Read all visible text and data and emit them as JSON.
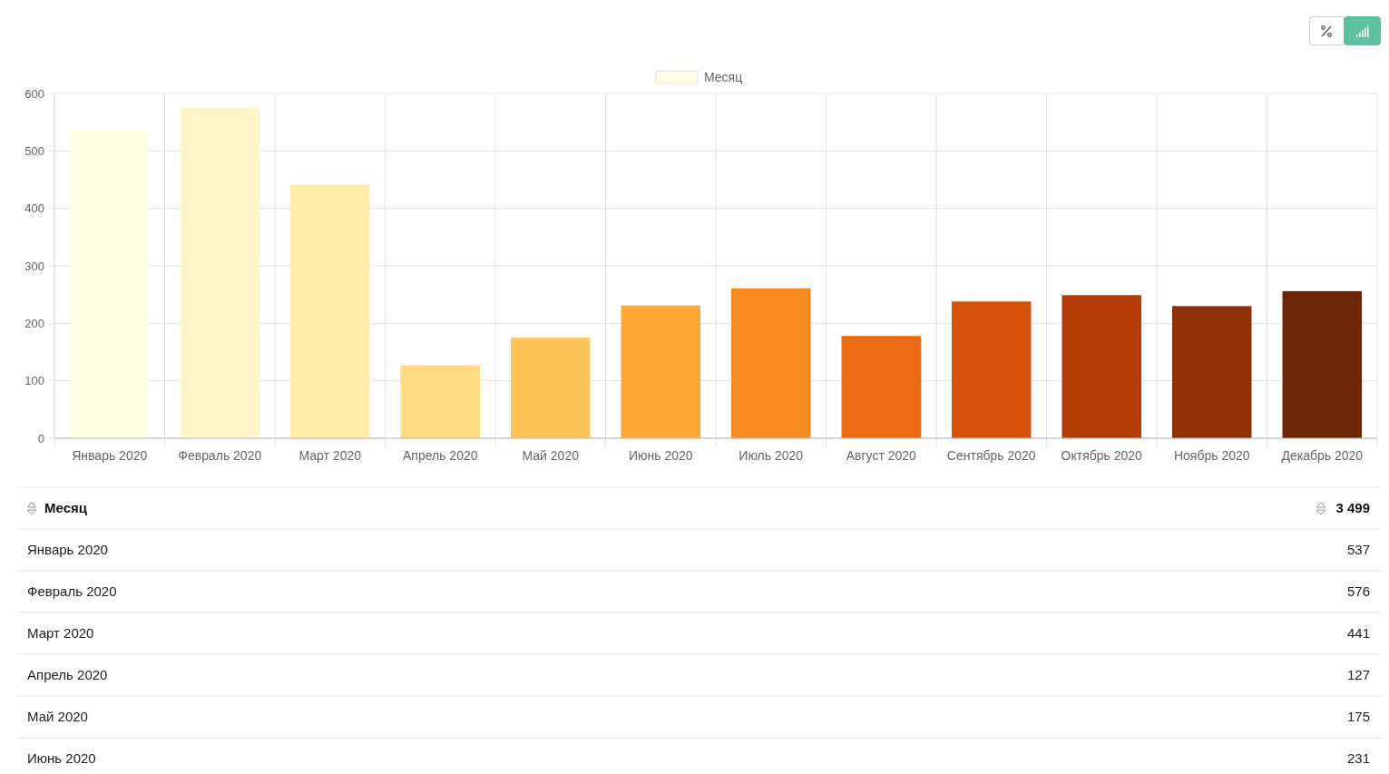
{
  "chart_data": {
    "type": "bar",
    "categories": [
      "Январь 2020",
      "Февраль 2020",
      "Март 2020",
      "Апрель 2020",
      "Май 2020",
      "Июнь 2020",
      "Июль 2020",
      "Август 2020",
      "Сентябрь 2020",
      "Октябрь 2020",
      "Ноябрь 2020",
      "Декабрь 2020"
    ],
    "series": [
      {
        "name": "Месяц",
        "color": "#ffffe5",
        "colors": [
          "#ffffe5",
          "#fff7c9",
          "#feeca9",
          "#fedc83",
          "#fec559",
          "#fea835",
          "#f88a22",
          "#ea6b13",
          "#d45209",
          "#b33c06",
          "#8f2f05",
          "#6b2506"
        ],
        "values": [
          537,
          576,
          441,
          127,
          175,
          231,
          261,
          178,
          238,
          249,
          230,
          256
        ]
      }
    ],
    "ylim": [
      0,
      600
    ],
    "yticks": [
      0,
      100,
      200,
      300,
      400,
      500,
      600
    ],
    "grid": true,
    "legend": "top",
    "annotations": [
      "Месяц",
      "3 499",
      "Январь 2020",
      "537",
      "Февраль 2020",
      "576",
      "Март 2020",
      "441",
      "Апрель 2020",
      "127",
      "Май 2020",
      "175",
      "Июнь 2020",
      "231"
    ]
  }
}
